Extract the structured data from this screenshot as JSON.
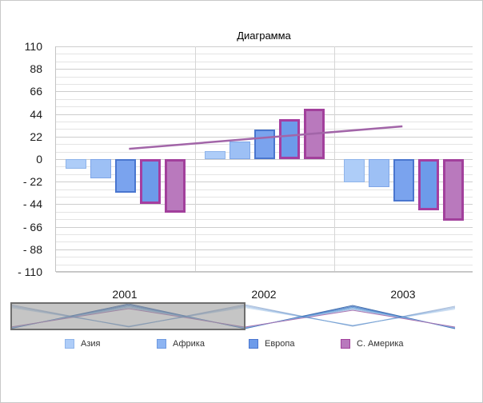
{
  "window": {
    "background": "#ffffff",
    "border_color": "#c9c9c9"
  },
  "chart": {
    "title": "Диаграмма",
    "y_axis": {
      "ticks": [
        "110",
        "88",
        "66",
        "44",
        "22",
        "0",
        "- 22",
        "- 44",
        "- 66",
        "- 88",
        "- 110"
      ]
    },
    "x_axis": {
      "labels": [
        "2001",
        "2002",
        "2003"
      ]
    },
    "legend": {
      "items": [
        {
          "label": "Азия",
          "fill": "#aecdf8",
          "border": "#8fb4ea"
        },
        {
          "label": "Африка",
          "fill": "#8db4f2",
          "border": "#6f9ae0"
        },
        {
          "label": "Европа",
          "fill": "#6d9bea",
          "border": "#4a76cf"
        },
        {
          "label": "С. Америка",
          "fill": "#b979bd",
          "border": "#a2409c"
        }
      ]
    }
  },
  "chart_data": {
    "type": "bar",
    "title": "Диаграмма",
    "categories": [
      "2001",
      "2002",
      "2003"
    ],
    "ylim": [
      -110,
      110
    ],
    "y_tick_step": 22,
    "grid": true,
    "legend_position": "bottom",
    "series": [
      {
        "name": "Азия",
        "fill": "#aecdf8",
        "border": "#8fb4ea",
        "border_width": 1,
        "values": [
          -9,
          8,
          -23
        ]
      },
      {
        "name": "Африка",
        "fill": "#9dc0f5",
        "border": "#7fa6e8",
        "border_width": 1,
        "values": [
          -19,
          17,
          -27
        ]
      },
      {
        "name": "Европа",
        "fill": "#7aa3ee",
        "border": "#4a76cf",
        "border_width": 2,
        "values": [
          -33,
          29,
          -41
        ]
      },
      {
        "name": "",
        "fill": "#6d9bea",
        "border": "#a53ea0",
        "border_width": 3,
        "values": [
          -44,
          39,
          -50
        ]
      },
      {
        "name": "С. Америка",
        "fill": "#b979bd",
        "border": "#a2409c",
        "border_width": 3,
        "values": [
          -52,
          49,
          -60
        ]
      }
    ],
    "trendline": {
      "color": "#a265a8",
      "width": 2.5,
      "start": {
        "fx": 0.175,
        "value": 10
      },
      "end": {
        "fx": 0.83,
        "value": 32
      }
    }
  },
  "range_selector": {
    "line_colors": [
      "#2e5fa3",
      "#4472c4",
      "#5b9bd5",
      "#7fa9dc",
      "#9dc3e6",
      "#a265a8"
    ],
    "selection": {
      "fill": "rgba(150,150,150,0.55)",
      "border": "#6e6e6e"
    }
  }
}
